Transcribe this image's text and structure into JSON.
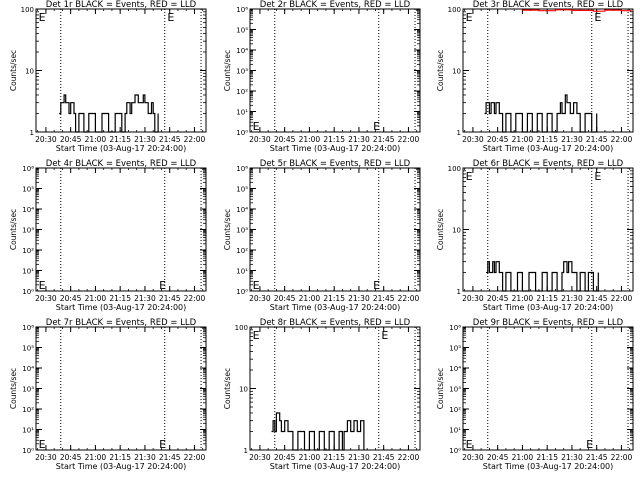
{
  "colors": {
    "events": "#000000",
    "lld": "#ff0000",
    "background": "#ffffff"
  },
  "chart_data": [
    {
      "type": "line",
      "title": "Det 1r BLACK = Events, RED = LLD",
      "xlabel": "Start Time (03-Aug-17 20:24:00)",
      "ylabel": "Counts/sec",
      "x_ticks": [
        "20:30",
        "20:45",
        "21:00",
        "21:15",
        "21:30",
        "21:45",
        "22:00"
      ],
      "xlim": [
        "20:24",
        "22:07"
      ],
      "yscale": "log",
      "ylim": [
        1,
        100
      ],
      "y_ticks": [
        "1",
        "10",
        "100"
      ],
      "vlines": [
        "20:39",
        "21:42",
        "22:04"
      ],
      "markers": [
        {
          "text": "E",
          "at": "20:25"
        },
        {
          "text": "E",
          "at": "21:43"
        }
      ],
      "series": [
        {
          "color": "#000000",
          "x": [
            "20:38",
            "20:39",
            "20:41",
            "20:42",
            "20:44",
            "20:45",
            "20:47",
            "20:48",
            "20:50",
            "20:53",
            "20:56",
            "21:00",
            "21:04",
            "21:08",
            "21:12",
            "21:14",
            "21:16",
            "21:18",
            "21:19",
            "21:21",
            "21:22",
            "21:24",
            "21:26",
            "21:28",
            "21:29",
            "21:30",
            "21:32",
            "21:34",
            "21:35",
            "21:36",
            "21:38"
          ],
          "y": [
            2,
            3,
            4,
            3,
            2,
            3,
            2,
            1,
            2,
            1,
            2,
            1,
            2,
            1,
            2,
            2,
            1,
            2,
            3,
            2,
            3,
            4,
            3,
            3,
            4,
            3,
            2,
            3,
            2,
            1,
            2
          ]
        }
      ]
    },
    {
      "type": "line",
      "title": "Det 2r BLACK = Events, RED = LLD",
      "xlabel": "Start Time (03-Aug-17 20:24:00)",
      "ylabel": "Counts/sec",
      "x_ticks": [
        "20:30",
        "20:45",
        "21:00",
        "21:15",
        "21:30",
        "21:45",
        "22:00"
      ],
      "xlim": [
        "20:24",
        "22:07"
      ],
      "yscale": "log",
      "ylim": [
        1,
        1000000
      ],
      "y_ticks": [
        "10⁰",
        "10¹",
        "10²",
        "10³",
        "10⁴",
        "10⁵",
        "10⁶"
      ],
      "vlines": [
        "20:39",
        "21:42",
        "22:04"
      ],
      "markers": [
        {
          "text": "E",
          "at": "20:25"
        },
        {
          "text": "E",
          "at": "21:38"
        }
      ],
      "series": []
    },
    {
      "type": "line",
      "title": "Det 3r BLACK = Events, RED = LLD",
      "xlabel": "Start Time (03-Aug-17 20:24:00)",
      "ylabel": "Counts/sec",
      "x_ticks": [
        "20:30",
        "20:45",
        "21:00",
        "21:15",
        "21:30",
        "21:45",
        "22:00"
      ],
      "xlim": [
        "20:24",
        "22:07"
      ],
      "yscale": "log",
      "ylim": [
        1,
        100
      ],
      "y_ticks": [
        "1",
        "10",
        "100"
      ],
      "vlines": [
        "20:39",
        "21:42",
        "22:04"
      ],
      "markers": [
        {
          "text": "E",
          "at": "20:25"
        },
        {
          "text": "E",
          "at": "21:43"
        }
      ],
      "series": [
        {
          "color": "#000000",
          "x": [
            "20:37",
            "20:38",
            "20:40",
            "20:41",
            "20:43",
            "20:44",
            "20:46",
            "20:48",
            "20:50",
            "20:53",
            "20:56",
            "21:00",
            "21:03",
            "21:06",
            "21:09",
            "21:12",
            "21:15",
            "21:18",
            "21:21",
            "21:23",
            "21:24",
            "21:26",
            "21:27",
            "21:29",
            "21:31",
            "21:33",
            "21:35",
            "21:38",
            "21:42",
            "21:45"
          ],
          "y": [
            2,
            3,
            2,
            3,
            2,
            3,
            2,
            1,
            2,
            1,
            2,
            1,
            2,
            1,
            2,
            1,
            2,
            1,
            2,
            3,
            2,
            4,
            3,
            2,
            3,
            2,
            1,
            2,
            1,
            2
          ]
        },
        {
          "color": "#ff0000",
          "x": [
            "21:00",
            "21:10",
            "21:20",
            "21:30",
            "21:43",
            "21:50",
            "22:00",
            "22:06"
          ],
          "y": [
            96,
            94,
            97,
            95,
            92,
            96,
            94,
            95
          ]
        }
      ]
    },
    {
      "type": "line",
      "title": "Det 4r BLACK = Events, RED = LLD",
      "xlabel": "Start Time (03-Aug-17 20:24:00)",
      "ylabel": "Counts/sec",
      "x_ticks": [
        "20:30",
        "20:45",
        "21:00",
        "21:15",
        "21:30",
        "21:45",
        "22:00"
      ],
      "xlim": [
        "20:24",
        "22:07"
      ],
      "yscale": "log",
      "ylim": [
        1,
        1000000
      ],
      "y_ticks": [
        "10⁰",
        "10¹",
        "10²",
        "10³",
        "10⁴",
        "10⁵",
        "10⁶"
      ],
      "vlines": [
        "20:39",
        "21:42",
        "22:04"
      ],
      "markers": [
        {
          "text": "E",
          "at": "20:25"
        },
        {
          "text": "E",
          "at": "21:38"
        }
      ],
      "series": []
    },
    {
      "type": "line",
      "title": "Det 5r BLACK = Events, RED = LLD",
      "xlabel": "Start Time (03-Aug-17 20:24:00)",
      "ylabel": "Counts/sec",
      "x_ticks": [
        "20:30",
        "20:45",
        "21:00",
        "21:15",
        "21:30",
        "21:45",
        "22:00"
      ],
      "xlim": [
        "20:24",
        "22:07"
      ],
      "yscale": "log",
      "ylim": [
        1,
        1000000
      ],
      "y_ticks": [
        "10⁰",
        "10¹",
        "10²",
        "10³",
        "10⁴",
        "10⁵",
        "10⁶"
      ],
      "vlines": [
        "20:39",
        "21:42",
        "22:04"
      ],
      "markers": [
        {
          "text": "E",
          "at": "20:25"
        },
        {
          "text": "E",
          "at": "21:38"
        }
      ],
      "series": []
    },
    {
      "type": "line",
      "title": "Det 6r BLACK = Events, RED = LLD",
      "xlabel": "Start Time (03-Aug-17 20:24:00)",
      "ylabel": "Counts/sec",
      "x_ticks": [
        "20:30",
        "20:45",
        "21:00",
        "21:15",
        "21:30",
        "21:45",
        "22:00"
      ],
      "xlim": [
        "20:24",
        "22:07"
      ],
      "yscale": "log",
      "ylim": [
        1,
        100
      ],
      "y_ticks": [
        "1",
        "10",
        "100"
      ],
      "vlines": [
        "20:39",
        "21:42",
        "22:04"
      ],
      "markers": [
        {
          "text": "E",
          "at": "20:25"
        },
        {
          "text": "E",
          "at": "21:43"
        }
      ],
      "series": [
        {
          "color": "#000000",
          "x": [
            "20:38",
            "20:39",
            "20:40",
            "20:42",
            "20:43",
            "20:44",
            "20:46",
            "20:48",
            "20:50",
            "20:53",
            "20:57",
            "21:00",
            "21:04",
            "21:08",
            "21:12",
            "21:15",
            "21:18",
            "21:21",
            "21:24",
            "21:25",
            "21:27",
            "21:28",
            "21:30",
            "21:31",
            "21:33",
            "21:35",
            "21:38",
            "21:40",
            "21:43",
            "21:46"
          ],
          "y": [
            2,
            3,
            2,
            3,
            2,
            3,
            2,
            1,
            2,
            1,
            2,
            1,
            2,
            1,
            2,
            1,
            2,
            1,
            2,
            3,
            2,
            3,
            2,
            2,
            1,
            2,
            1,
            2,
            1,
            2
          ]
        }
      ]
    },
    {
      "type": "line",
      "title": "Det 7r BLACK = Events, RED = LLD",
      "xlabel": "Start Time (03-Aug-17 20:24:00)",
      "ylabel": "Counts/sec",
      "x_ticks": [
        "20:30",
        "20:45",
        "21:00",
        "21:15",
        "21:30",
        "21:45",
        "22:00"
      ],
      "xlim": [
        "20:24",
        "22:07"
      ],
      "yscale": "log",
      "ylim": [
        1,
        1000000
      ],
      "y_ticks": [
        "10⁰",
        "10¹",
        "10²",
        "10³",
        "10⁴",
        "10⁵",
        "10⁶"
      ],
      "vlines": [
        "20:39",
        "21:42",
        "22:04"
      ],
      "markers": [
        {
          "text": "E",
          "at": "20:25"
        },
        {
          "text": "E",
          "at": "21:38"
        }
      ],
      "series": []
    },
    {
      "type": "line",
      "title": "Det 8r BLACK = Events, RED = LLD",
      "xlabel": "Start Time (03-Aug-17 20:24:00)",
      "ylabel": "Counts/sec",
      "x_ticks": [
        "20:30",
        "20:45",
        "21:00",
        "21:15",
        "21:30",
        "21:45",
        "22:00"
      ],
      "xlim": [
        "20:24",
        "22:07"
      ],
      "yscale": "log",
      "ylim": [
        1,
        100
      ],
      "y_ticks": [
        "1",
        "10",
        "100"
      ],
      "vlines": [
        "20:39",
        "21:42",
        "22:04"
      ],
      "markers": [
        {
          "text": "E",
          "at": "20:25"
        },
        {
          "text": "E",
          "at": "21:43"
        }
      ],
      "series": [
        {
          "color": "#000000",
          "x": [
            "20:37",
            "20:38",
            "20:39",
            "20:40",
            "20:42",
            "20:43",
            "20:45",
            "20:47",
            "20:50",
            "20:53",
            "20:57",
            "21:00",
            "21:03",
            "21:06",
            "21:09",
            "21:12",
            "21:15",
            "21:18",
            "21:20",
            "21:21",
            "21:23",
            "21:25",
            "21:27",
            "21:29",
            "21:31",
            "21:33"
          ],
          "y": [
            2,
            3,
            2,
            4,
            3,
            2,
            3,
            2,
            1,
            2,
            1,
            2,
            1,
            2,
            1,
            2,
            1,
            2,
            1,
            2,
            3,
            2,
            3,
            2,
            3,
            1
          ]
        }
      ]
    },
    {
      "type": "line",
      "title": "Det 9r BLACK = Events, RED = LLD",
      "xlabel": "Start Time (03-Aug-17 20:24:00)",
      "ylabel": "Counts/sec",
      "x_ticks": [
        "20:30",
        "20:45",
        "21:00",
        "21:15",
        "21:30",
        "21:45",
        "22:00"
      ],
      "xlim": [
        "20:24",
        "22:07"
      ],
      "yscale": "log",
      "ylim": [
        1,
        1000000
      ],
      "y_ticks": [
        "10⁰",
        "10¹",
        "10²",
        "10³",
        "10⁴",
        "10⁵",
        "10⁶"
      ],
      "vlines": [
        "20:39",
        "21:42",
        "22:04"
      ],
      "markers": [
        {
          "text": "E",
          "at": "20:25"
        },
        {
          "text": "E",
          "at": "21:38"
        }
      ],
      "series": []
    }
  ]
}
